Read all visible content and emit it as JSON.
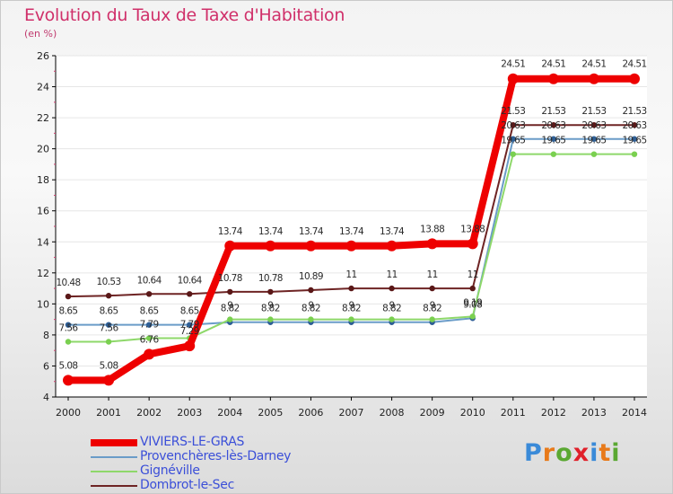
{
  "title": "Evolution du Taux de Taxe d'Habitation",
  "unit_label": "(en %)",
  "colors": {
    "title": "#d0306a",
    "legend_text": "#3b4fd8",
    "axis": "#000000",
    "grid": "#e6e6e6"
  },
  "logo": {
    "letters": [
      "P",
      "r",
      "o",
      "x",
      "i",
      "t",
      "i"
    ],
    "colors": [
      "#3a8ad8",
      "#e87a1a",
      "#5aa832",
      "#e0202a",
      "#3a8ad8",
      "#e87a1a",
      "#5aa832"
    ]
  },
  "chart_data": {
    "type": "line",
    "title": "Evolution du Taux de Taxe d'Habitation",
    "xlabel": "",
    "ylabel": "(en %)",
    "ylim": [
      4,
      26
    ],
    "yticks": [
      4,
      6,
      8,
      10,
      12,
      14,
      16,
      18,
      20,
      22,
      24,
      26
    ],
    "categories": [
      "2000",
      "2001",
      "2002",
      "2003",
      "2004",
      "2005",
      "2006",
      "2007",
      "2008",
      "2009",
      "2010",
      "2011",
      "2012",
      "2013",
      "2014"
    ],
    "grid": true,
    "legend_position": "bottom-left",
    "series": [
      {
        "name": "VIVIERS-LE-GRAS",
        "color": "#ee0000",
        "point_color": "#ee0000",
        "values": [
          5.08,
          5.08,
          6.76,
          7.29,
          13.74,
          13.74,
          13.74,
          13.74,
          13.74,
          13.88,
          13.88,
          24.51,
          24.51,
          24.51,
          24.51
        ],
        "labels": [
          "5.08",
          "5.08",
          "6.76",
          "7.29",
          "13.74",
          "13.74",
          "13.74",
          "13.74",
          "13.74",
          "13.88",
          "13.88",
          "24.51",
          "24.51",
          "24.51",
          "24.51"
        ]
      },
      {
        "name": "Provenchères-lès-Darney",
        "color": "#6a9cc8",
        "point_color": "#2f5f95",
        "values": [
          8.65,
          8.65,
          8.65,
          8.65,
          8.82,
          8.82,
          8.82,
          8.82,
          8.82,
          8.82,
          9.08,
          20.63,
          20.63,
          20.63,
          20.63
        ],
        "labels": [
          "8.65",
          "8.65",
          "8.65",
          "8.65",
          "8.82",
          "8.82",
          "8.82",
          "8.82",
          "8.82",
          "8.82",
          "9.08",
          "20.63",
          "20.63",
          "20.63",
          "20.63"
        ]
      },
      {
        "name": "Gignéville",
        "color": "#8ed86a",
        "point_color": "#7ad050",
        "values": [
          7.56,
          7.56,
          7.79,
          7.79,
          9.0,
          9.0,
          9.0,
          9.0,
          9.0,
          9.0,
          9.19,
          19.65,
          19.65,
          19.65,
          19.65
        ],
        "labels": [
          "7.56",
          "7.56",
          "7.79",
          "7.79",
          "9",
          "9",
          "9",
          "9",
          "9",
          "9",
          "9.19",
          "19.65",
          "19.65",
          "19.65",
          "19.65"
        ]
      },
      {
        "name": "Dombrot-le-Sec",
        "color": "#6e2424",
        "point_color": "#5a1818",
        "values": [
          10.48,
          10.53,
          10.64,
          10.64,
          10.78,
          10.78,
          10.89,
          11.0,
          11.0,
          11.0,
          11.0,
          21.53,
          21.53,
          21.53,
          21.53
        ],
        "labels": [
          "10.48",
          "10.53",
          "10.64",
          "10.64",
          "10.78",
          "10.78",
          "10.89",
          "11",
          "11",
          "11",
          "11",
          "21.53",
          "21.53",
          "21.53",
          "21.53"
        ]
      }
    ]
  }
}
